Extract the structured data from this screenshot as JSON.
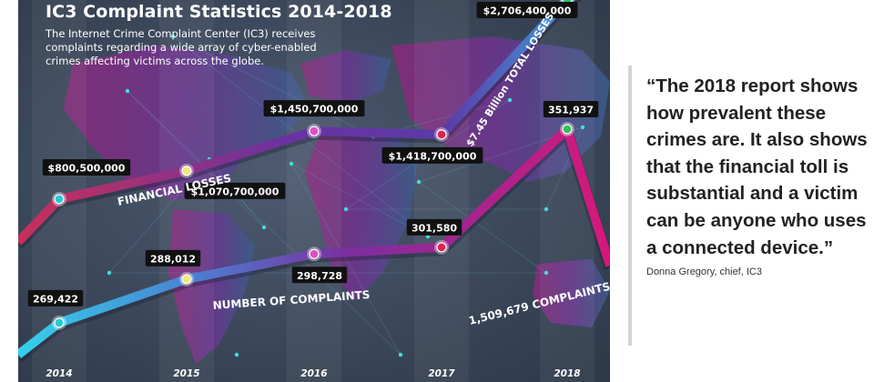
{
  "chart_data": {
    "type": "line",
    "title": "IC3 Complaint Statistics 2014-2018",
    "subtitle": "The Internet Crime Complaint Center (IC3) receives complaints regarding a wide array of cyber-enabled crimes affecting victims across the globe.",
    "x": [
      "2014",
      "2015",
      "2016",
      "2017",
      "2018"
    ],
    "series": [
      {
        "name": "FINANCIAL LOSSES",
        "values": [
          800500000,
          1070700000,
          1450700000,
          1418700000,
          2706400000
        ],
        "labels": [
          "$800,500,000",
          "$1,070,700,000",
          "$1,450,700,000",
          "$1,418,700,000",
          "$2,706,400,000"
        ],
        "total_label": "$7.45 Billion TOTAL LOSSES"
      },
      {
        "name": "NUMBER OF COMPLAINTS",
        "values": [
          269422,
          288012,
          298728,
          301580,
          351937
        ],
        "labels": [
          "269,422",
          "288,012",
          "298,728",
          "301,580",
          "351,937"
        ],
        "total_label": "1,509,679 COMPLAINTS"
      }
    ],
    "colors": {
      "background": "#3a4a5e",
      "map": "#7a2f86",
      "line_gradient_start": "#c8305a",
      "line_gradient_mid": "#6a32a0",
      "line_gradient_end": "#35b8e8",
      "complaints_gradient_start": "#35b8e8",
      "complaints_gradient_end": "#d6187a",
      "marker_2014": "#29c9d0",
      "marker_2015": "#f2e87a",
      "marker_2016": "#e04fbf",
      "marker_2017": "#d8254d",
      "marker_2018": "#34c15a",
      "label_box": "#111111"
    }
  },
  "quote": {
    "text": "“The 2018 report shows how prevalent these crimes are. It also shows that the financial toll is substantial and a victim can be anyone who uses a connected device.”",
    "attribution": "Donna Gregory, chief, IC3"
  }
}
